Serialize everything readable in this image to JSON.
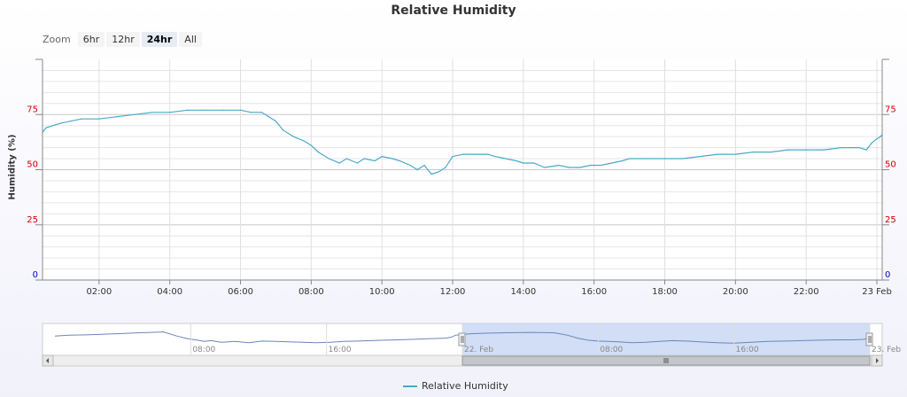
{
  "title": "Relative Humidity",
  "zoom": {
    "label": "Zoom",
    "buttons": [
      "6hr",
      "12hr",
      "24hr",
      "All"
    ],
    "active": "24hr"
  },
  "legend": {
    "label": "Relative Humidity"
  },
  "colors": {
    "line": "#4aa8c9",
    "left_axis_labels": "#cc0000",
    "zero_label": "#0000cc",
    "selection": "#c5d6f3"
  },
  "chart_data": {
    "type": "line",
    "title": "Relative Humidity",
    "ylabel": "Humidity (%)",
    "ylim": [
      0,
      100
    ],
    "yticks": [
      0,
      25,
      50,
      75
    ],
    "xlim_hours": [
      0.4,
      24.15
    ],
    "xtick_labels": [
      "02:00",
      "04:00",
      "06:00",
      "08:00",
      "10:00",
      "12:00",
      "14:00",
      "16:00",
      "18:00",
      "20:00",
      "22:00",
      "23 Feb"
    ],
    "grid": true,
    "legend_position": "bottom-center",
    "series": [
      {
        "name": "Relative Humidity",
        "x": [
          0.4,
          0.5,
          0.9,
          1.2,
          1.5,
          2.0,
          2.5,
          3.0,
          3.5,
          4.0,
          4.5,
          5.0,
          5.5,
          6.0,
          6.3,
          6.6,
          6.8,
          7.0,
          7.2,
          7.5,
          7.8,
          8.0,
          8.2,
          8.5,
          8.8,
          9.0,
          9.3,
          9.5,
          9.8,
          10.0,
          10.3,
          10.5,
          10.8,
          11.0,
          11.2,
          11.4,
          11.6,
          11.8,
          12.0,
          12.3,
          12.6,
          13.0,
          13.2,
          13.5,
          13.8,
          14.0,
          14.3,
          14.6,
          15.0,
          15.3,
          15.6,
          15.9,
          16.2,
          16.5,
          16.8,
          17.0,
          17.5,
          18.0,
          18.5,
          19.0,
          19.5,
          20.0,
          20.5,
          21.0,
          21.5,
          22.0,
          22.5,
          23.0,
          23.3,
          23.5,
          23.7,
          23.85,
          24.0,
          24.1,
          24.15
        ],
        "y": [
          67,
          69,
          71,
          72,
          73,
          73,
          74,
          75,
          76,
          76,
          77,
          77,
          77,
          77,
          76,
          76,
          74,
          72,
          68,
          65,
          63,
          61,
          58,
          55,
          53,
          55,
          53,
          55,
          54,
          56,
          55,
          54,
          52,
          50,
          52,
          48,
          49,
          51,
          56,
          57,
          57,
          57,
          56,
          55,
          54,
          53,
          53,
          51,
          52,
          51,
          51,
          52,
          52,
          53,
          54,
          55,
          55,
          55,
          55,
          56,
          57,
          57,
          58,
          58,
          59,
          59,
          59,
          60,
          60,
          60,
          59,
          62,
          64,
          65,
          66
        ]
      }
    ]
  },
  "navigator": {
    "labels": [
      "08:00",
      "16:00",
      "22. Feb",
      "08:00",
      "16:00",
      "23. Feb"
    ],
    "x": [
      0,
      0.8,
      1.8,
      2.6,
      3.2,
      3.8,
      4.4,
      5.0,
      5.6,
      6.4,
      7.2,
      7.8,
      8.4,
      8.8,
      9.2,
      9.8,
      10.6,
      11.4,
      12.2,
      13.0,
      13.8,
      14.6,
      15.4,
      16.2,
      17.0,
      17.8,
      18.6,
      19.4,
      20.2,
      21.0,
      21.6,
      22.2,
      23.0,
      23.4,
      23.6,
      24.0,
      24.6,
      25.4,
      26.6,
      28.0,
      29.4,
      30.2,
      30.8,
      31.4,
      32.0,
      32.6,
      33.2,
      34.0,
      34.8,
      35.6,
      36.4,
      37.2,
      38.0,
      39.0,
      40.0,
      41.0,
      42.0,
      43.0,
      44.0,
      45.0,
      46.0,
      47.0,
      47.6,
      48.0
    ],
    "y": [
      68,
      70,
      71,
      72,
      73,
      74,
      75,
      76,
      77,
      78,
      68,
      62,
      58,
      55,
      57,
      53,
      55,
      52,
      56,
      55,
      54,
      53,
      52,
      53,
      55,
      56,
      57,
      58,
      59,
      60,
      61,
      62,
      63,
      66,
      70,
      72,
      74,
      75,
      76,
      77,
      76,
      70,
      63,
      58,
      56,
      55,
      54,
      52,
      53,
      55,
      57,
      56,
      54,
      52,
      51,
      53,
      55,
      56,
      57,
      58,
      59,
      59,
      60,
      63
    ],
    "selected_range": [
      24,
      48
    ]
  }
}
